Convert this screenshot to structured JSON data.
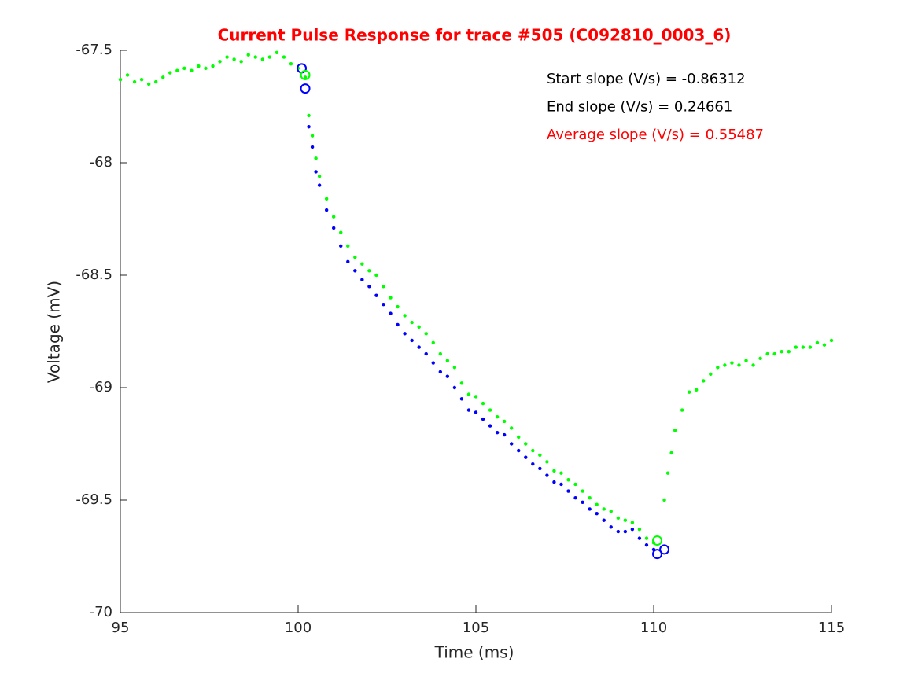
{
  "chart_data": {
    "type": "scatter",
    "title": "Current Pulse Response for trace #505 (C092810_0003_6)",
    "title_color": "#ff0000",
    "x_label": "Time (ms)",
    "y_label": "Voltage (mV)",
    "xlim": [
      95,
      115
    ],
    "ylim": [
      -70,
      -67.5
    ],
    "xticks": [
      95,
      100,
      105,
      110,
      115
    ],
    "yticks": [
      -70,
      -69.5,
      -69,
      -68.5,
      -68,
      -67.5
    ],
    "grid": false,
    "annotations": [
      {
        "text": "Start slope (V/s) = -0.86312",
        "color": "#000000"
      },
      {
        "text": "End slope (V/s) = 0.24661",
        "color": "#000000"
      },
      {
        "text": "Average slope (V/s) = 0.55487",
        "color": "#ff0000"
      }
    ],
    "series": [
      {
        "color": "#00ff00",
        "marker": "dot",
        "x": [
          95.0,
          95.2,
          95.4,
          95.6,
          95.8,
          96.0,
          96.2,
          96.4,
          96.6,
          96.8,
          97.0,
          97.2,
          97.4,
          97.6,
          97.8,
          98.0,
          98.2,
          98.4,
          98.6,
          98.8,
          99.0,
          99.2,
          99.4,
          99.6,
          99.8,
          100.0,
          100.2,
          100.3,
          100.4,
          100.5,
          100.6,
          100.8,
          101.0,
          101.2,
          101.4,
          101.6,
          101.8,
          102.0,
          102.2,
          102.4,
          102.6,
          102.8,
          103.0,
          103.2,
          103.4,
          103.6,
          103.8,
          104.0,
          104.2,
          104.4,
          104.6,
          104.8,
          105.0,
          105.2,
          105.4,
          105.6,
          105.8,
          106.0,
          106.2,
          106.4,
          106.6,
          106.8,
          107.0,
          107.2,
          107.4,
          107.6,
          107.8,
          108.0,
          108.2,
          108.4,
          108.6,
          108.8,
          109.0,
          109.2,
          109.4,
          109.6,
          109.8,
          110.0,
          110.3,
          110.4,
          110.5,
          110.6,
          110.8,
          111.0,
          111.2,
          111.4,
          111.6,
          111.8,
          112.0,
          112.2,
          112.4,
          112.6,
          112.8,
          113.0,
          113.2,
          113.4,
          113.6,
          113.8,
          114.0,
          114.2,
          114.4,
          114.6,
          114.8,
          115.0
        ],
        "values": [
          -67.63,
          -67.61,
          -67.64,
          -67.63,
          -67.65,
          -67.64,
          -67.62,
          -67.6,
          -67.59,
          -67.58,
          -67.59,
          -67.57,
          -67.58,
          -67.57,
          -67.55,
          -67.53,
          -67.54,
          -67.55,
          -67.52,
          -67.53,
          -67.54,
          -67.53,
          -67.51,
          -67.53,
          -67.56,
          -67.58,
          -67.62,
          -67.79,
          -67.88,
          -67.98,
          -68.06,
          -68.16,
          -68.24,
          -68.31,
          -68.37,
          -68.42,
          -68.45,
          -68.48,
          -68.5,
          -68.55,
          -68.6,
          -68.64,
          -68.68,
          -68.71,
          -68.73,
          -68.76,
          -68.8,
          -68.85,
          -68.88,
          -68.91,
          -68.98,
          -69.03,
          -69.04,
          -69.07,
          -69.1,
          -69.13,
          -69.15,
          -69.18,
          -69.22,
          -69.25,
          -69.28,
          -69.3,
          -69.33,
          -69.37,
          -69.38,
          -69.41,
          -69.43,
          -69.46,
          -69.49,
          -69.52,
          -69.54,
          -69.55,
          -69.58,
          -69.59,
          -69.6,
          -69.63,
          -69.67,
          -69.69,
          -69.5,
          -69.38,
          -69.29,
          -69.19,
          -69.1,
          -69.02,
          -69.01,
          -68.97,
          -68.94,
          -68.91,
          -68.9,
          -68.89,
          -68.9,
          -68.88,
          -68.9,
          -68.87,
          -68.85,
          -68.85,
          -68.84,
          -68.84,
          -68.82,
          -68.82,
          -68.82,
          -68.8,
          -68.81,
          -68.79
        ]
      },
      {
        "color": "#0000ff",
        "marker": "dot",
        "x": [
          100.3,
          100.4,
          100.5,
          100.6,
          100.8,
          101.0,
          101.2,
          101.4,
          101.6,
          101.8,
          102.0,
          102.2,
          102.4,
          102.6,
          102.8,
          103.0,
          103.2,
          103.4,
          103.6,
          103.8,
          104.0,
          104.2,
          104.4,
          104.6,
          104.8,
          105.0,
          105.2,
          105.4,
          105.6,
          105.8,
          106.0,
          106.2,
          106.4,
          106.6,
          106.8,
          107.0,
          107.2,
          107.4,
          107.6,
          107.8,
          108.0,
          108.2,
          108.4,
          108.6,
          108.8,
          109.0,
          109.2,
          109.4,
          109.6,
          109.8,
          110.0
        ],
        "values": [
          -67.84,
          -67.93,
          -68.04,
          -68.1,
          -68.21,
          -68.29,
          -68.37,
          -68.44,
          -68.48,
          -68.52,
          -68.55,
          -68.59,
          -68.63,
          -68.67,
          -68.72,
          -68.76,
          -68.79,
          -68.82,
          -68.85,
          -68.89,
          -68.93,
          -68.95,
          -69.0,
          -69.05,
          -69.1,
          -69.11,
          -69.14,
          -69.17,
          -69.2,
          -69.21,
          -69.25,
          -69.28,
          -69.31,
          -69.34,
          -69.36,
          -69.39,
          -69.42,
          -69.43,
          -69.46,
          -69.49,
          -69.51,
          -69.54,
          -69.56,
          -69.59,
          -69.62,
          -69.64,
          -69.64,
          -69.63,
          -69.67,
          -69.7,
          -69.72
        ]
      },
      {
        "color": "#0000ff",
        "marker": "circle",
        "x": [
          100.1,
          100.2,
          110.1,
          110.3
        ],
        "values": [
          -67.58,
          -67.67,
          -69.74,
          -69.72
        ]
      },
      {
        "color": "#00ff00",
        "marker": "circle",
        "x": [
          100.2,
          110.1
        ],
        "values": [
          -67.61,
          -69.68
        ]
      }
    ]
  }
}
